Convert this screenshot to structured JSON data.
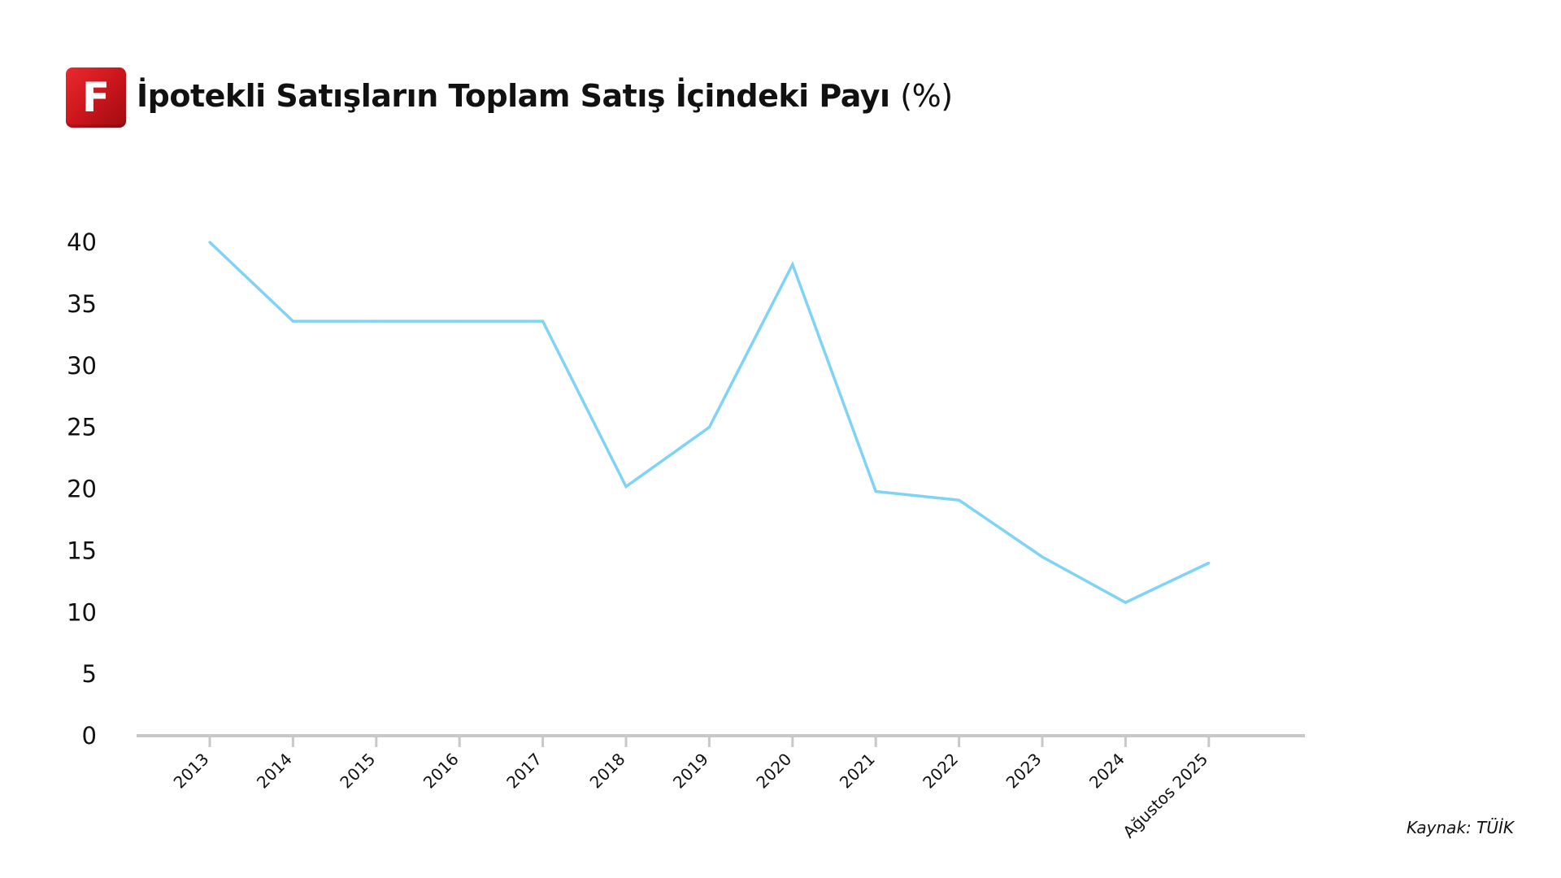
{
  "logo": {
    "letter": "F",
    "color": "#d7161d"
  },
  "title": {
    "main": "İpotekli Satışların Toplam Satış İçindeki Payı",
    "unit": "(%)"
  },
  "source": "Kaynak: TÜİK",
  "chart_data": {
    "type": "line",
    "title": "İpotekli Satışların Toplam Satış İçindeki Payı (%)",
    "xlabel": "",
    "ylabel": "",
    "categories": [
      "2013",
      "2014",
      "2015",
      "2016",
      "2017",
      "2018",
      "2019",
      "2020",
      "2021",
      "2022",
      "2023",
      "2024",
      "Ağustos 2025"
    ],
    "series": [
      {
        "values": [
          40.0,
          33.6,
          33.6,
          33.6,
          33.6,
          20.2,
          25.0,
          38.2,
          19.8,
          19.1,
          14.5,
          10.8,
          14.0
        ],
        "color": "#7fd3f7"
      }
    ],
    "ylim": [
      0,
      40
    ],
    "yticks": [
      0,
      5,
      10,
      15,
      20,
      25,
      30,
      35,
      40
    ],
    "grid": false,
    "legend": "none",
    "axis_color": "#c8c8c8"
  }
}
